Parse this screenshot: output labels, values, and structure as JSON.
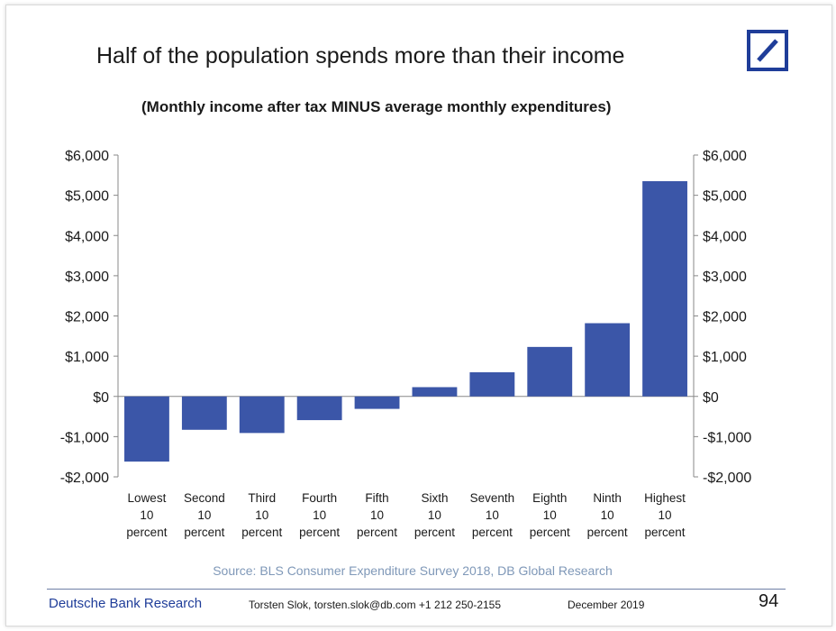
{
  "slide": {
    "title": "Half of the population spends more than their income",
    "subtitle": "(Monthly income after tax MINUS average monthly expenditures)",
    "source": "Source: BLS Consumer Expenditure Survey 2018, DB Global Research",
    "brand": "Deutsche Bank Research",
    "contact": "Torsten Slok, torsten.slok@db.com  +1 212 250-2155",
    "date": "December 2019",
    "page_number": "94",
    "logo_icon": "deutsche-bank-logo-icon"
  },
  "chart_data": {
    "type": "bar",
    "categories": [
      [
        "Lowest",
        "10",
        "percent"
      ],
      [
        "Second",
        "10",
        "percent"
      ],
      [
        "Third",
        "10",
        "percent"
      ],
      [
        "Fourth",
        "10",
        "percent"
      ],
      [
        "Fifth",
        "10",
        "percent"
      ],
      [
        "Sixth",
        "10",
        "percent"
      ],
      [
        "Seventh",
        "10",
        "percent"
      ],
      [
        "Eighth",
        "10",
        "percent"
      ],
      [
        "Ninth",
        "10",
        "percent"
      ],
      [
        "Highest",
        "10",
        "percent"
      ]
    ],
    "values": [
      -1620,
      -830,
      -910,
      -590,
      -310,
      230,
      600,
      1230,
      1820,
      5350
    ],
    "ylim": [
      -2000,
      6000
    ],
    "yticks": [
      6000,
      5000,
      4000,
      3000,
      2000,
      1000,
      0,
      -1000,
      -2000
    ],
    "ytick_labels": [
      "$6,000",
      "$5,000",
      "$4,000",
      "$3,000",
      "$2,000",
      "$1,000",
      "$0",
      "-$1,000",
      "-$2,000"
    ],
    "secondary_axis": true,
    "grid": false,
    "legend": "none",
    "bar_color": "#3b56a8"
  }
}
